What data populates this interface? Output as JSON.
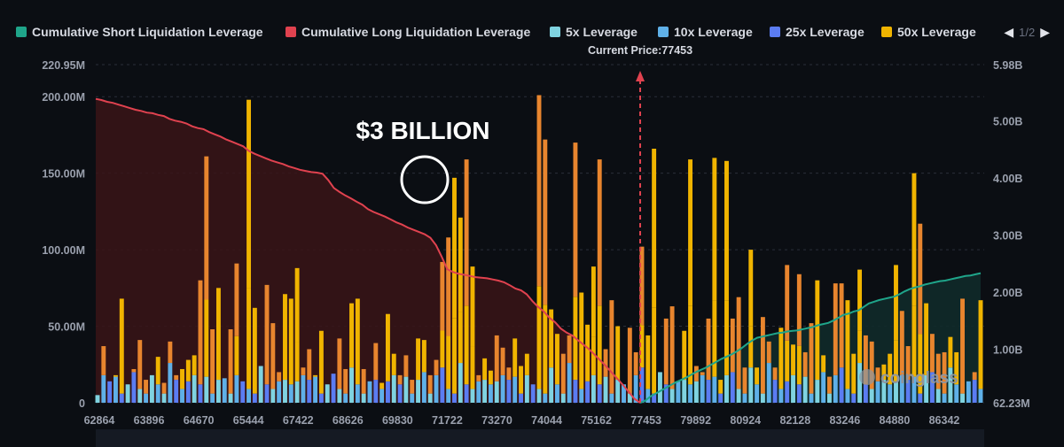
{
  "chart_data": {
    "type": "bar",
    "title": "",
    "legend": [
      {
        "name": "Cumulative Short Liquidation Leverage",
        "color": "#1fa58a"
      },
      {
        "name": "Cumulative Long Liquidation Leverage",
        "color": "#e0424f"
      },
      {
        "name": "5x Leverage",
        "color": "#7fd3e0"
      },
      {
        "name": "10x Leverage",
        "color": "#5fb0e8"
      },
      {
        "name": "25x Leverage",
        "color": "#5b7cf2"
      },
      {
        "name": "50x Leverage",
        "color": "#f0b400"
      }
    ],
    "legend_page": "1/2",
    "current_price_label": "Current Price:77453",
    "current_price": 77453,
    "x_ticks": [
      "62864",
      "63896",
      "64670",
      "65444",
      "67422",
      "68626",
      "69830",
      "71722",
      "73270",
      "74044",
      "75162",
      "77453",
      "79892",
      "80924",
      "82128",
      "83246",
      "84880",
      "86342"
    ],
    "y_left_ticks": [
      "0",
      "50.00M",
      "100.00M",
      "150.00M",
      "200.00M",
      "220.95M"
    ],
    "y_left_range": [
      0,
      220.95
    ],
    "y_right_ticks": [
      "62.23M",
      "1.00B",
      "2.00B",
      "3.00B",
      "4.00B",
      "5.00B",
      "5.98B"
    ],
    "y_right_range": [
      0.06223,
      5.98
    ],
    "annotation": "$3 BILLION",
    "watermark": "coinglass",
    "bar_values_total_M": [
      5,
      37,
      14,
      18,
      68,
      12,
      22,
      41,
      15,
      18,
      30,
      13,
      40,
      18,
      22,
      28,
      31,
      80,
      161,
      48,
      75,
      16,
      48,
      91,
      14,
      198,
      62,
      24,
      77,
      52,
      20,
      71,
      68,
      88,
      23,
      35,
      18,
      47,
      12,
      19,
      42,
      22,
      65,
      68,
      22,
      14,
      39,
      13,
      58,
      32,
      18,
      31,
      15,
      42,
      41,
      18,
      28,
      92,
      108,
      147,
      121,
      159,
      89,
      18,
      29,
      21,
      44,
      36,
      23,
      42,
      24,
      32,
      12,
      201,
      172,
      61,
      45,
      32,
      44,
      170,
      72,
      51,
      89,
      159,
      35,
      67,
      50,
      12,
      49,
      33,
      102,
      44,
      166,
      20,
      55,
      63,
      14,
      47,
      159,
      24,
      20,
      55,
      160,
      15,
      158,
      55,
      69,
      23,
      100,
      23,
      56,
      40,
      23,
      49,
      90,
      38,
      84,
      33,
      52,
      80,
      31,
      17,
      78,
      78,
      67,
      32,
      87,
      44,
      40,
      23,
      25,
      32,
      90,
      60,
      37,
      150,
      117,
      65,
      45,
      32,
      33,
      43,
      33,
      68,
      14,
      20,
      67
    ],
    "cumulative_long_B": [
      5.38,
      5.36,
      5.33,
      5.31,
      5.28,
      5.25,
      5.22,
      5.19,
      5.17,
      5.14,
      5.13,
      5.1,
      5.08,
      5.03,
      5.0,
      4.98,
      4.95,
      4.9,
      4.87,
      4.85,
      4.8,
      4.76,
      4.72,
      4.67,
      4.63,
      4.59,
      4.55,
      4.47,
      4.42,
      4.38,
      4.34,
      4.3,
      4.27,
      4.24,
      4.2,
      4.17,
      4.14,
      4.12,
      4.1,
      4.09,
      4.07,
      3.96,
      3.82,
      3.75,
      3.69,
      3.64,
      3.58,
      3.53,
      3.45,
      3.4,
      3.36,
      3.32,
      3.27,
      3.22,
      3.18,
      3.13,
      3.09,
      3.05,
      3.01,
      2.95,
      2.82,
      2.62,
      2.4,
      2.35,
      2.32,
      2.3,
      2.28,
      2.26,
      2.25,
      2.24,
      2.22,
      2.2,
      2.17,
      2.12,
      2.06,
      2.03,
      1.96,
      1.84,
      1.74,
      1.66,
      1.55,
      1.47,
      1.36,
      1.29,
      1.24,
      1.16,
      1.08,
      1.0,
      0.9,
      0.8,
      0.7,
      0.59,
      0.48,
      0.37,
      0.25,
      0.13,
      0.06
    ],
    "cumulative_short_B": [
      0.06,
      0.1,
      0.17,
      0.22,
      0.27,
      0.32,
      0.37,
      0.42,
      0.46,
      0.5,
      0.55,
      0.6,
      0.64,
      0.68,
      0.73,
      0.78,
      0.83,
      0.87,
      0.91,
      0.96,
      1.02,
      1.09,
      1.15,
      1.2,
      1.22,
      1.24,
      1.26,
      1.28,
      1.29,
      1.31,
      1.32,
      1.33,
      1.35,
      1.37,
      1.39,
      1.42,
      1.44,
      1.46,
      1.5,
      1.55,
      1.6,
      1.62,
      1.66,
      1.68,
      1.74,
      1.8,
      1.83,
      1.86,
      1.88,
      1.9,
      1.92,
      1.96,
      2.01,
      2.05,
      2.08,
      2.1,
      2.13,
      2.15,
      2.17,
      2.19,
      2.2,
      2.22,
      2.24,
      2.26,
      2.28,
      2.29,
      2.31,
      2.33
    ]
  }
}
